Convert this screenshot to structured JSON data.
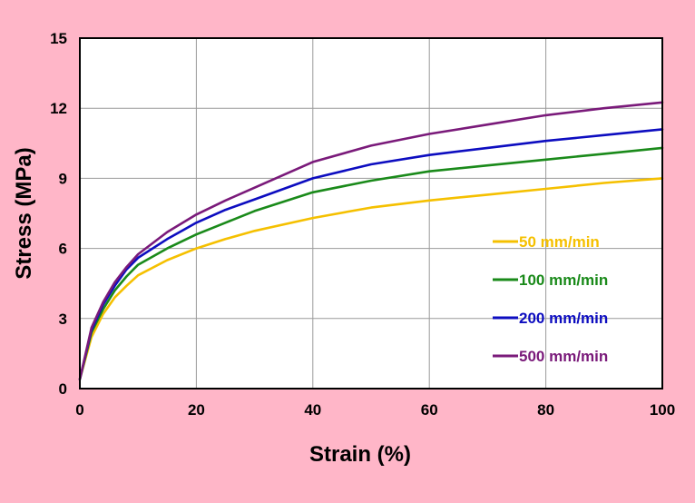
{
  "chart_data": {
    "type": "line",
    "xlabel": "Strain (%)",
    "ylabel": "Stress (MPa)",
    "xlim": [
      0,
      100
    ],
    "ylim": [
      0,
      15
    ],
    "xticks": [
      0,
      20,
      40,
      60,
      80,
      100
    ],
    "yticks": [
      0,
      3,
      6,
      9,
      12,
      15
    ],
    "grid": true,
    "legend_position": "center-right",
    "series": [
      {
        "name": "50 mm/min",
        "color": "#f5c000",
        "x": [
          0,
          2,
          4,
          6,
          8,
          10,
          15,
          20,
          25,
          30,
          40,
          50,
          60,
          70,
          80,
          90,
          100
        ],
        "y": [
          0.4,
          2.2,
          3.2,
          3.9,
          4.4,
          4.85,
          5.5,
          6.0,
          6.4,
          6.75,
          7.3,
          7.75,
          8.05,
          8.3,
          8.55,
          8.8,
          9.0
        ]
      },
      {
        "name": "100 mm/min",
        "color": "#1a8a1a",
        "x": [
          0,
          2,
          4,
          6,
          8,
          10,
          15,
          20,
          25,
          30,
          40,
          50,
          60,
          70,
          80,
          90,
          100
        ],
        "y": [
          0.4,
          2.4,
          3.4,
          4.2,
          4.8,
          5.3,
          6.0,
          6.6,
          7.1,
          7.6,
          8.4,
          8.9,
          9.3,
          9.55,
          9.8,
          10.05,
          10.3
        ]
      },
      {
        "name": "200 mm/min",
        "color": "#0d0dc0",
        "x": [
          0,
          2,
          4,
          6,
          8,
          10,
          15,
          20,
          25,
          30,
          40,
          50,
          60,
          70,
          80,
          90,
          100
        ],
        "y": [
          0.4,
          2.5,
          3.6,
          4.4,
          5.1,
          5.6,
          6.4,
          7.1,
          7.65,
          8.1,
          9.0,
          9.6,
          10.0,
          10.3,
          10.6,
          10.85,
          11.1
        ]
      },
      {
        "name": "500 mm/min",
        "color": "#7a1a7a",
        "x": [
          0,
          2,
          4,
          6,
          8,
          10,
          15,
          20,
          25,
          30,
          40,
          50,
          60,
          70,
          80,
          90,
          100
        ],
        "y": [
          0.4,
          2.6,
          3.7,
          4.55,
          5.2,
          5.75,
          6.7,
          7.45,
          8.05,
          8.6,
          9.7,
          10.4,
          10.9,
          11.3,
          11.7,
          12.0,
          12.25
        ]
      }
    ]
  }
}
